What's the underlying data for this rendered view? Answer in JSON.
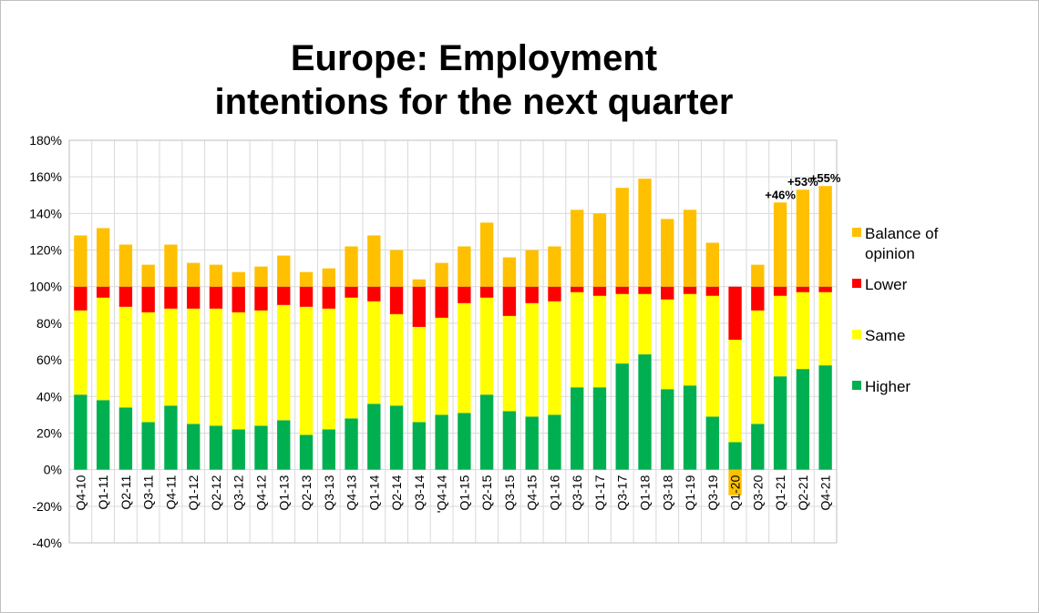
{
  "chart_data": {
    "type": "bar",
    "stacked": true,
    "title_lines": [
      "Europe: Employment",
      "intentions for the next quarter"
    ],
    "categories": [
      "Q4-10",
      "Q1-11",
      "Q2-11",
      "Q3-11",
      "Q4-11",
      "Q1-12",
      "Q2-12",
      "Q3-12",
      "Q4-12",
      "Q1-13",
      "Q2-13",
      "Q3-13",
      "Q4-13",
      "Q1-14",
      "Q2-14",
      "Q3-14",
      "'Q4-14",
      "Q1-15",
      "Q2-15",
      "Q3-15",
      "Q4-15",
      "Q1-16",
      "Q3-16",
      "Q1-17",
      "Q3-17",
      "Q1-18",
      "Q3-18",
      "Q1-19",
      "Q3-19",
      "Q1-20",
      "Q3-20",
      "Q1-21",
      "Q2-21",
      "Q4-21"
    ],
    "series": [
      {
        "name": "Higher",
        "color": "#00b050",
        "values": [
          41,
          38,
          34,
          26,
          35,
          25,
          24,
          22,
          24,
          27,
          19,
          22,
          28,
          36,
          35,
          26,
          30,
          31,
          41,
          32,
          29,
          30,
          45,
          45,
          58,
          63,
          44,
          46,
          29,
          15,
          25,
          51,
          55,
          57
        ]
      },
      {
        "name": "Same",
        "color": "#ffff00",
        "values": [
          46,
          56,
          55,
          60,
          53,
          63,
          64,
          64,
          63,
          63,
          70,
          66,
          66,
          56,
          50,
          52,
          53,
          60,
          53,
          52,
          62,
          62,
          52,
          50,
          38,
          33,
          49,
          50,
          66,
          56,
          62,
          44,
          42,
          40
        ]
      },
      {
        "name": "Lower",
        "color": "#ff0000",
        "values": [
          13,
          6,
          11,
          14,
          12,
          12,
          12,
          14,
          13,
          10,
          11,
          12,
          6,
          8,
          15,
          22,
          17,
          9,
          6,
          16,
          9,
          8,
          3,
          5,
          4,
          4,
          7,
          4,
          5,
          29,
          13,
          5,
          3,
          3
        ]
      },
      {
        "name": "Balance of opinion",
        "color": "#ffc000",
        "values": [
          28,
          32,
          23,
          12,
          23,
          13,
          12,
          8,
          11,
          17,
          8,
          10,
          22,
          28,
          20,
          4,
          13,
          22,
          35,
          16,
          20,
          22,
          42,
          40,
          54,
          59,
          37,
          42,
          24,
          -14,
          12,
          46,
          53,
          55
        ]
      }
    ],
    "legend_order": [
      "Balance of opinion",
      "Lower",
      "Same",
      "Higher"
    ],
    "annotations": [
      {
        "category": "Q1-21",
        "text": "+46%"
      },
      {
        "category": "Q2-21",
        "text": "+53%"
      },
      {
        "category": "Q4-21",
        "text": "+55%"
      }
    ],
    "ylim": [
      -40,
      180
    ],
    "ytick_step": 20,
    "ytick_format": "percent",
    "grid": true,
    "legend_position": "right"
  }
}
